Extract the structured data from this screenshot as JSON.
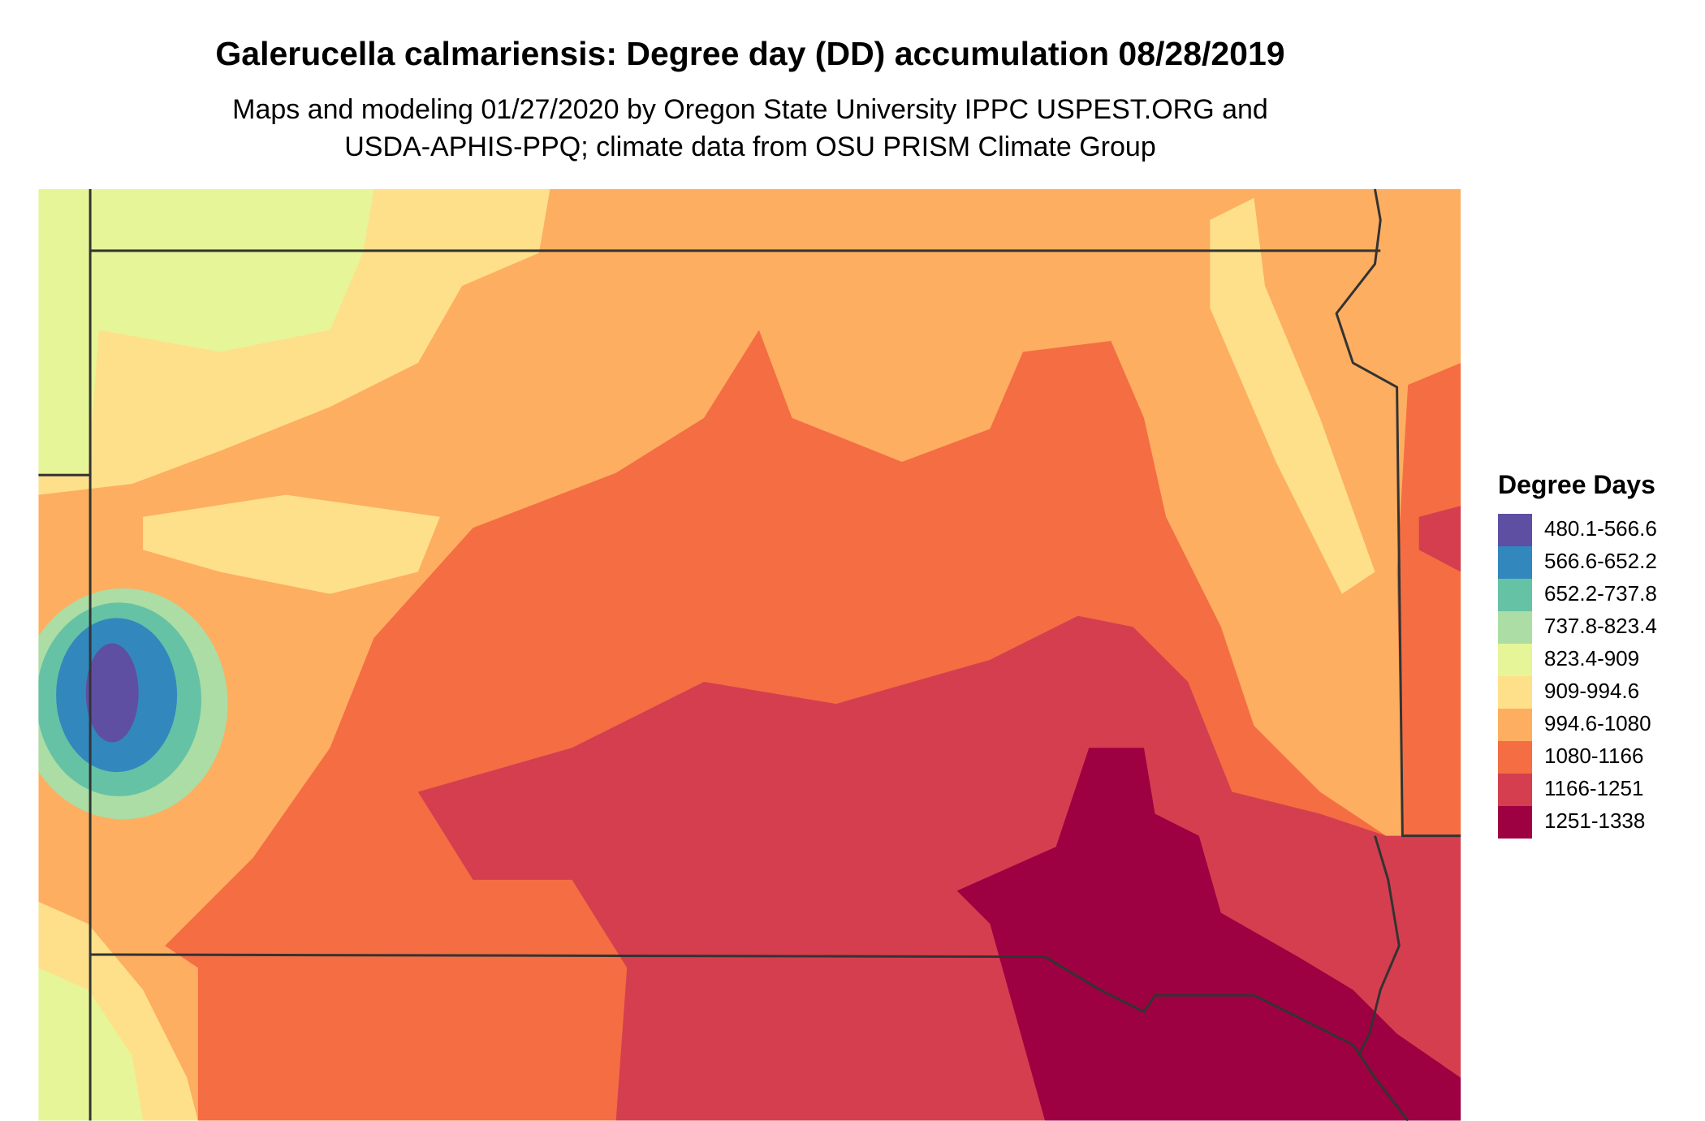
{
  "header": {
    "title": "Galerucella calmariensis: Degree day (DD) accumulation 08/28/2019",
    "subtitle": [
      "Maps and modeling 01/27/2020 by Oregon State University IPPC USPEST.ORG and",
      "USDA-APHIS-PPQ; climate data from OSU PRISM Climate Group"
    ]
  },
  "legend": {
    "title": "Degree Days",
    "items": [
      {
        "label": "480.1-566.6",
        "color": "#5E4FA2"
      },
      {
        "label": "566.6-652.2",
        "color": "#3288BD"
      },
      {
        "label": "652.2-737.8",
        "color": "#66C2A5"
      },
      {
        "label": "737.8-823.4",
        "color": "#ABDDA4"
      },
      {
        "label": "823.4-909",
        "color": "#E6F598"
      },
      {
        "label": "909-994.6",
        "color": "#FEE08B"
      },
      {
        "label": "994.6-1080",
        "color": "#FDAE61"
      },
      {
        "label": "1080-1166",
        "color": "#F46D43"
      },
      {
        "label": "1166-1251",
        "color": "#D53E4F"
      },
      {
        "label": "1251-1338",
        "color": "#9E0142"
      }
    ]
  }
}
